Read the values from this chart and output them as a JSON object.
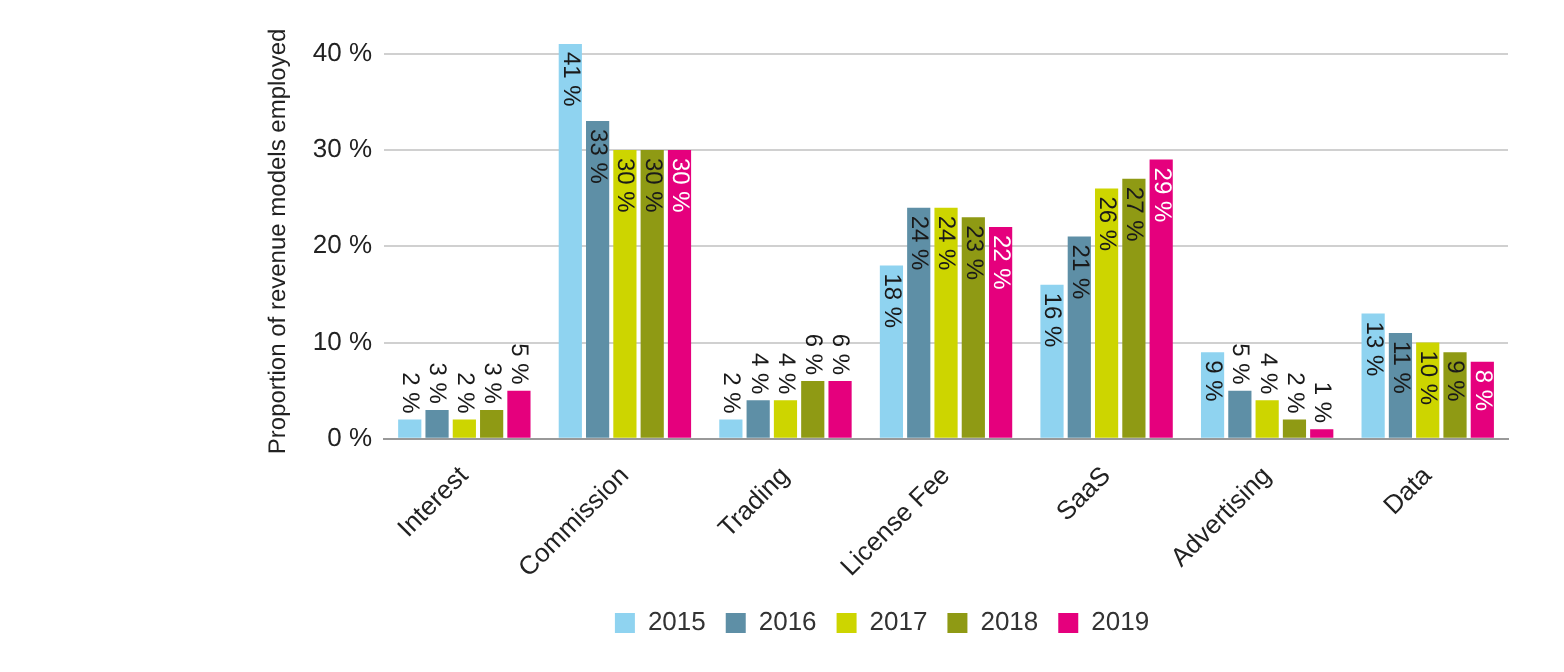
{
  "chart_data": {
    "type": "bar",
    "ylabel": "Proportion of revenue models employed",
    "categories": [
      "Interest",
      "Commission",
      "Trading",
      "License Fee",
      "SaaS",
      "Advertising",
      "Data"
    ],
    "series": [
      {
        "name": "2015",
        "color": "#8fd3f0",
        "values": [
          2,
          41,
          2,
          18,
          16,
          9,
          13
        ],
        "value_labels": [
          "2 %",
          "41 %",
          "2 %",
          "18 %",
          "16 %",
          "9 %",
          "13 %"
        ]
      },
      {
        "name": "2016",
        "color": "#5e8fa6",
        "values": [
          3,
          33,
          4,
          24,
          21,
          5,
          11
        ],
        "value_labels": [
          "3 %",
          "33 %",
          "4 %",
          "24 %",
          "21 %",
          "5 %",
          "11 %"
        ]
      },
      {
        "name": "2017",
        "color": "#cdd500",
        "values": [
          2,
          30,
          4,
          24,
          26,
          4,
          10
        ],
        "value_labels": [
          "2 %",
          "30 %",
          "4 %",
          "24 %",
          "26 %",
          "4 %",
          "10 %"
        ]
      },
      {
        "name": "2018",
        "color": "#8f9a14",
        "values": [
          3,
          30,
          6,
          23,
          27,
          2,
          9
        ],
        "value_labels": [
          "3 %",
          "30 %",
          "6 %",
          "23 %",
          "27 %",
          "2 %",
          "9 %"
        ]
      },
      {
        "name": "2019",
        "color": "#e5007d",
        "values": [
          5,
          30,
          6,
          22,
          29,
          1,
          8
        ],
        "value_labels": [
          "5 %",
          "30 %",
          "6 %",
          "22 %",
          "29 %",
          "1 %",
          "8 %"
        ]
      }
    ],
    "ylim": [
      0,
      41
    ],
    "yticks": [
      {
        "value": 0,
        "label": "0 %"
      },
      {
        "value": 10,
        "label": "10 %"
      },
      {
        "value": 20,
        "label": "20 %"
      },
      {
        "value": 30,
        "label": "30 %"
      },
      {
        "value": 40,
        "label": "40 %"
      }
    ],
    "grid": "y",
    "legend": "bottom"
  }
}
